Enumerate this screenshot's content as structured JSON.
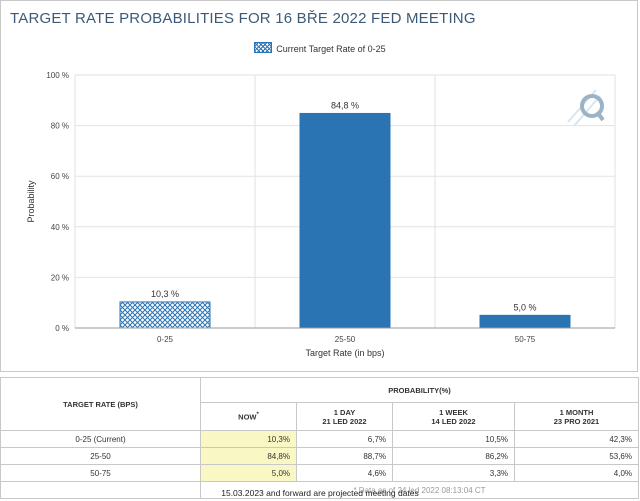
{
  "chart_data": {
    "type": "bar",
    "title": "TARGET RATE PROBABILITIES FOR 16 BŘE 2022 FED MEETING",
    "legend": [
      "Current Target Rate of 0-25"
    ],
    "categories": [
      "0-25",
      "25-50",
      "50-75"
    ],
    "values": [
      10.3,
      84.8,
      5.0
    ],
    "data_labels": [
      "10,3 %",
      "84,8 %",
      "5,0 %"
    ],
    "current_category_index": 0,
    "xlabel": "Target Rate (in bps)",
    "ylabel": "Probability",
    "ylim": [
      0,
      100
    ],
    "yticks": [
      0,
      20,
      40,
      60,
      80,
      100
    ],
    "ytick_labels": [
      "0 %",
      "20 %",
      "40 %",
      "60 %",
      "80 %",
      "100 %"
    ],
    "grid": true
  },
  "colors": {
    "bar": "#2a74b4",
    "bar_current": "#2a74b4",
    "title": "#3c5a78"
  },
  "table": {
    "target_rate_header": "TARGET RATE (BPS)",
    "probability_header": "PROBABILITY(%)",
    "columns": [
      {
        "line1": "NOW",
        "marker": "*",
        "line2": ""
      },
      {
        "line1": "1 DAY",
        "line2": "21 LED 2022"
      },
      {
        "line1": "1 WEEK",
        "line2": "14 LED 2022"
      },
      {
        "line1": "1 MONTH",
        "line2": "23 PRO 2021"
      }
    ],
    "rows": [
      {
        "label": "0-25 (Current)",
        "values": [
          "10,3%",
          "6,7%",
          "10,5%",
          "42,3%"
        ]
      },
      {
        "label": "25-50",
        "values": [
          "84,8%",
          "88,7%",
          "86,2%",
          "53,6%"
        ]
      },
      {
        "label": "50-75",
        "values": [
          "5,0%",
          "4,6%",
          "3,3%",
          "4,0%"
        ]
      }
    ],
    "note": "* Data as of 24 led 2022 08:13:04 CT"
  },
  "footer": "15.03.2023 and forward are projected meeting dates"
}
